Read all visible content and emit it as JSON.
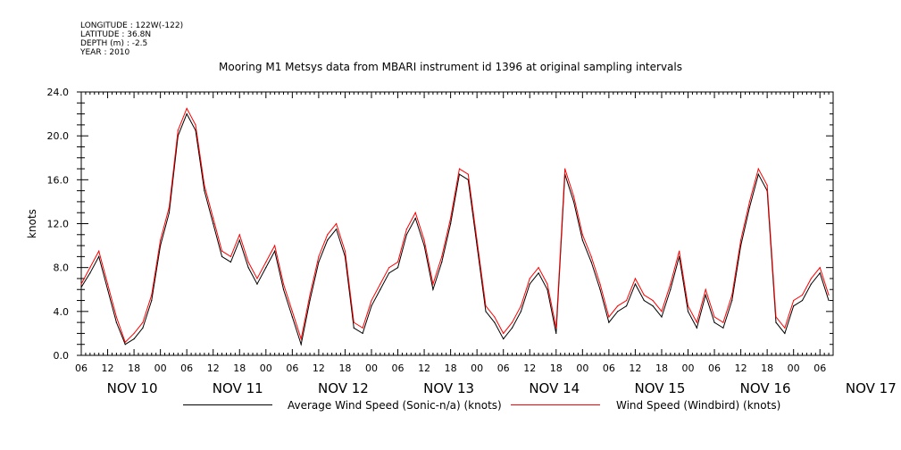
{
  "meta": {
    "longitude": "LONGITUDE : 122W(-122)",
    "latitude": "LATITUDE : 36.8N",
    "depth": "DEPTH (m) : -2.5",
    "year": "YEAR : 2010"
  },
  "chart_data": {
    "type": "line",
    "title": "Mooring M1 Metsys data from MBARI instrument id 1396 at original sampling intervals",
    "ylabel": "knots",
    "xlabel": "",
    "ylim": [
      0,
      24
    ],
    "yticks": [
      "0.0",
      "4.0",
      "8.0",
      "12.0",
      "16.0",
      "20.0",
      "24.0"
    ],
    "xlim_hours": [
      0,
      171
    ],
    "hour_tick_labels": [
      "06",
      "12",
      "18",
      "00",
      "06",
      "12",
      "18",
      "00",
      "06",
      "12",
      "18",
      "00",
      "06",
      "12",
      "18",
      "00",
      "06",
      "12",
      "18",
      "00",
      "06",
      "12",
      "18",
      "00",
      "06",
      "12",
      "18",
      "00",
      "06"
    ],
    "day_labels": [
      "NOV 10",
      "NOV 11",
      "NOV 12",
      "NOV 13",
      "NOV 14",
      "NOV 15",
      "NOV 16",
      "NOV 17"
    ],
    "grid": false,
    "legend_position": "bottom",
    "series": [
      {
        "name": "Average Wind Speed (Sonic-n/a) (knots)",
        "color": "#000000",
        "x_hours_since_nov10_0600": [
          0,
          2,
          4,
          6,
          8,
          10,
          12,
          14,
          16,
          18,
          20,
          22,
          24,
          26,
          28,
          30,
          32,
          34,
          36,
          38,
          40,
          42,
          44,
          46,
          48,
          50,
          52,
          54,
          56,
          58,
          60,
          62,
          64,
          66,
          68,
          70,
          72,
          74,
          76,
          78,
          80,
          82,
          84,
          86,
          88,
          90,
          92,
          94,
          96,
          98,
          100,
          102,
          104,
          106,
          108,
          110,
          112,
          114,
          116,
          118,
          120,
          122,
          124,
          126,
          128,
          130,
          132,
          134,
          136,
          138,
          140,
          142,
          144,
          146,
          148,
          150,
          152,
          154,
          156,
          158,
          160,
          162,
          164,
          166,
          168,
          170
        ],
        "values": [
          6.2,
          7.5,
          9.0,
          6.0,
          3.0,
          1.0,
          1.5,
          2.5,
          5.0,
          10.0,
          13.0,
          20.0,
          22.0,
          20.5,
          15.0,
          12.0,
          9.0,
          8.5,
          10.5,
          8.0,
          6.5,
          8.0,
          9.5,
          6.0,
          3.5,
          1.0,
          5.0,
          8.5,
          10.5,
          11.5,
          9.0,
          2.5,
          2.0,
          4.5,
          6.0,
          7.5,
          8.0,
          11.0,
          12.5,
          10.0,
          6.0,
          8.5,
          12.0,
          16.5,
          16.0,
          10.0,
          4.0,
          3.0,
          1.5,
          2.5,
          4.0,
          6.5,
          7.5,
          6.0,
          2.0,
          16.5,
          14.0,
          10.5,
          8.5,
          6.0,
          3.0,
          4.0,
          4.5,
          6.5,
          5.0,
          4.5,
          3.5,
          6.0,
          9.0,
          4.0,
          2.5,
          5.5,
          3.0,
          2.5,
          5.0,
          10.0,
          13.5,
          16.5,
          15.0,
          3.0,
          2.0,
          4.5,
          5.0,
          6.5,
          7.5,
          5.0
        ]
      },
      {
        "name": "Wind Speed (Windbird) (knots)",
        "color": "#ff0000",
        "x_hours_since_nov10_0600": [
          0,
          2,
          4,
          6,
          8,
          10,
          12,
          14,
          16,
          18,
          20,
          22,
          24,
          26,
          28,
          30,
          32,
          34,
          36,
          38,
          40,
          42,
          44,
          46,
          48,
          50,
          52,
          54,
          56,
          58,
          60,
          62,
          64,
          66,
          68,
          70,
          72,
          74,
          76,
          78,
          80,
          82,
          84,
          86,
          88,
          90,
          92,
          94,
          96,
          98,
          100,
          102,
          104,
          106,
          108,
          110,
          112,
          114,
          116,
          118,
          120,
          122,
          124,
          126,
          128,
          130,
          132,
          134,
          136,
          138,
          140,
          142,
          144,
          146,
          148,
          150,
          152,
          154,
          156,
          158,
          160,
          162,
          164,
          166,
          168,
          170
        ],
        "values": [
          6.5,
          8.0,
          9.5,
          6.5,
          3.5,
          1.2,
          2.0,
          3.0,
          5.5,
          10.5,
          13.5,
          20.5,
          22.5,
          21.0,
          15.5,
          12.5,
          9.5,
          9.0,
          11.0,
          8.5,
          7.0,
          8.5,
          10.0,
          6.5,
          4.0,
          1.5,
          5.5,
          9.0,
          11.0,
          12.0,
          9.5,
          3.0,
          2.5,
          5.0,
          6.5,
          8.0,
          8.5,
          11.5,
          13.0,
          10.5,
          6.5,
          9.0,
          12.5,
          17.0,
          16.5,
          10.5,
          4.5,
          3.5,
          2.0,
          3.0,
          4.5,
          7.0,
          8.0,
          6.5,
          2.5,
          17.0,
          14.5,
          11.0,
          9.0,
          6.5,
          3.5,
          4.5,
          5.0,
          7.0,
          5.5,
          5.0,
          4.0,
          6.5,
          9.5,
          4.5,
          3.0,
          6.0,
          3.5,
          3.0,
          5.5,
          10.5,
          14.0,
          17.0,
          15.5,
          3.5,
          2.5,
          5.0,
          5.5,
          7.0,
          8.0,
          5.5
        ]
      }
    ]
  },
  "legend": {
    "item1": "Average Wind Speed (Sonic-n/a) (knots)",
    "item2": "Wind Speed (Windbird) (knots)"
  }
}
